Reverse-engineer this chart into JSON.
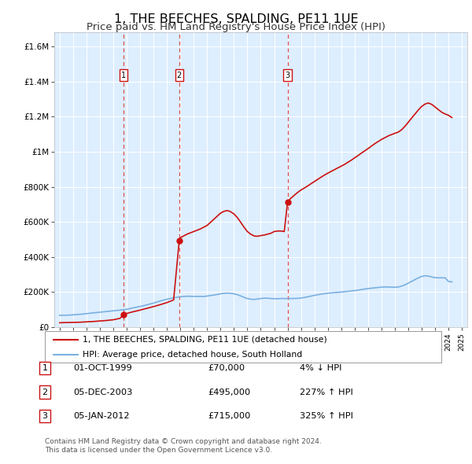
{
  "title": "1, THE BEECHES, SPALDING, PE11 1UE",
  "subtitle": "Price paid vs. HM Land Registry's House Price Index (HPI)",
  "title_fontsize": 11.5,
  "subtitle_fontsize": 9.5,
  "background_color": "#ffffff",
  "plot_bg_color": "#ddeeff",
  "grid_color": "#ffffff",
  "xmin": 1994.6,
  "xmax": 2025.4,
  "ymin": 0,
  "ymax": 1680000,
  "yticks": [
    0,
    200000,
    400000,
    600000,
    800000,
    1000000,
    1200000,
    1400000,
    1600000
  ],
  "ytick_labels": [
    "£0",
    "£200K",
    "£400K",
    "£600K",
    "£800K",
    "£1M",
    "£1.2M",
    "£1.4M",
    "£1.6M"
  ],
  "xtick_years": [
    1995,
    1996,
    1997,
    1998,
    1999,
    2000,
    2001,
    2002,
    2003,
    2004,
    2005,
    2006,
    2007,
    2008,
    2009,
    2010,
    2011,
    2012,
    2013,
    2014,
    2015,
    2016,
    2017,
    2018,
    2019,
    2020,
    2021,
    2022,
    2023,
    2024,
    2025
  ],
  "hpi_line_color": "#7ab0e0",
  "price_line_color": "#cc1111",
  "sale_marker_color": "#cc1111",
  "dashed_line_color": "#dd3333",
  "transactions": [
    {
      "label": "1",
      "year": 1999.75,
      "price": 70000
    },
    {
      "label": "2",
      "year": 2003.92,
      "price": 495000
    },
    {
      "label": "3",
      "year": 2012.0,
      "price": 715000
    }
  ],
  "transaction_info": [
    {
      "num": "1",
      "date": "01-OCT-1999",
      "price": "£70,000",
      "pct": "4% ↓ HPI"
    },
    {
      "num": "2",
      "date": "05-DEC-2003",
      "price": "£495,000",
      "pct": "227% ↑ HPI"
    },
    {
      "num": "3",
      "date": "05-JAN-2012",
      "price": "£715,000",
      "pct": "325% ↑ HPI"
    }
  ],
  "legend_line1": "1, THE BEECHES, SPALDING, PE11 1UE (detached house)",
  "legend_line2": "HPI: Average price, detached house, South Holland",
  "footer1": "Contains HM Land Registry data © Crown copyright and database right 2024.",
  "footer2": "This data is licensed under the Open Government Licence v3.0.",
  "hpi_data_x": [
    1995.0,
    1995.25,
    1995.5,
    1995.75,
    1996.0,
    1996.25,
    1996.5,
    1996.75,
    1997.0,
    1997.25,
    1997.5,
    1997.75,
    1998.0,
    1998.25,
    1998.5,
    1998.75,
    1999.0,
    1999.25,
    1999.5,
    1999.75,
    2000.0,
    2000.25,
    2000.5,
    2000.75,
    2001.0,
    2001.25,
    2001.5,
    2001.75,
    2002.0,
    2002.25,
    2002.5,
    2002.75,
    2003.0,
    2003.25,
    2003.5,
    2003.75,
    2004.0,
    2004.25,
    2004.5,
    2004.75,
    2005.0,
    2005.25,
    2005.5,
    2005.75,
    2006.0,
    2006.25,
    2006.5,
    2006.75,
    2007.0,
    2007.25,
    2007.5,
    2007.75,
    2008.0,
    2008.25,
    2008.5,
    2008.75,
    2009.0,
    2009.25,
    2009.5,
    2009.75,
    2010.0,
    2010.25,
    2010.5,
    2010.75,
    2011.0,
    2011.25,
    2011.5,
    2011.75,
    2012.0,
    2012.25,
    2012.5,
    2012.75,
    2013.0,
    2013.25,
    2013.5,
    2013.75,
    2014.0,
    2014.25,
    2014.5,
    2014.75,
    2015.0,
    2015.25,
    2015.5,
    2015.75,
    2016.0,
    2016.25,
    2016.5,
    2016.75,
    2017.0,
    2017.25,
    2017.5,
    2017.75,
    2018.0,
    2018.25,
    2018.5,
    2018.75,
    2019.0,
    2019.25,
    2019.5,
    2019.75,
    2020.0,
    2020.25,
    2020.5,
    2020.75,
    2021.0,
    2021.25,
    2021.5,
    2021.75,
    2022.0,
    2022.25,
    2022.5,
    2022.75,
    2023.0,
    2023.25,
    2023.5,
    2023.75,
    2024.0,
    2024.25
  ],
  "hpi_data_y": [
    67000,
    67500,
    68000,
    68500,
    70000,
    71500,
    73000,
    74500,
    77000,
    79000,
    81000,
    83000,
    85000,
    87000,
    89000,
    91000,
    93000,
    95000,
    97000,
    99000,
    102000,
    106000,
    110000,
    114000,
    118000,
    122000,
    127000,
    132000,
    137000,
    143000,
    149000,
    154000,
    159000,
    163000,
    167000,
    170000,
    173000,
    175000,
    176000,
    176000,
    175000,
    175000,
    175000,
    175000,
    177000,
    180000,
    183000,
    186000,
    190000,
    193000,
    194000,
    193000,
    190000,
    185000,
    178000,
    170000,
    163000,
    159000,
    158000,
    160000,
    163000,
    165000,
    165000,
    163000,
    162000,
    162000,
    163000,
    163000,
    163000,
    163000,
    163000,
    164000,
    166000,
    169000,
    173000,
    177000,
    181000,
    185000,
    188000,
    191000,
    193000,
    195000,
    197000,
    198000,
    200000,
    202000,
    204000,
    206000,
    208000,
    211000,
    214000,
    217000,
    220000,
    222000,
    224000,
    226000,
    228000,
    229000,
    229000,
    228000,
    227000,
    229000,
    234000,
    241000,
    251000,
    261000,
    271000,
    281000,
    289000,
    293000,
    291000,
    286000,
    282000,
    281000,
    281000,
    281000,
    260000,
    258000
  ],
  "price_data_x": [
    1995.0,
    1995.5,
    1996.0,
    1996.5,
    1997.0,
    1997.5,
    1998.0,
    1998.5,
    1999.0,
    1999.5,
    1999.75,
    2000.0,
    2000.5,
    2001.0,
    2001.5,
    2002.0,
    2002.5,
    2003.0,
    2003.5,
    2003.92,
    2004.0,
    2004.5,
    2005.0,
    2005.5,
    2006.0,
    2006.5,
    2007.0,
    2007.25,
    2007.5,
    2007.75,
    2008.0,
    2008.25,
    2008.5,
    2008.75,
    2009.0,
    2009.25,
    2009.5,
    2009.75,
    2010.0,
    2010.25,
    2010.5,
    2010.75,
    2011.0,
    2011.25,
    2011.5,
    2011.75,
    2012.0,
    2012.25,
    2012.5,
    2012.75,
    2013.0,
    2013.25,
    2013.5,
    2013.75,
    2014.0,
    2014.25,
    2014.5,
    2014.75,
    2015.0,
    2015.25,
    2015.5,
    2015.75,
    2016.0,
    2016.25,
    2016.5,
    2016.75,
    2017.0,
    2017.25,
    2017.5,
    2017.75,
    2018.0,
    2018.25,
    2018.5,
    2018.75,
    2019.0,
    2019.25,
    2019.5,
    2019.75,
    2020.0,
    2020.25,
    2020.5,
    2020.75,
    2021.0,
    2021.25,
    2021.5,
    2021.75,
    2022.0,
    2022.25,
    2022.5,
    2022.75,
    2023.0,
    2023.25,
    2023.5,
    2023.75,
    2024.0,
    2024.25
  ],
  "price_data_y": [
    25000,
    26000,
    27000,
    28000,
    30000,
    32000,
    35000,
    38000,
    42000,
    50000,
    70000,
    78000,
    88000,
    97000,
    107000,
    117000,
    128000,
    140000,
    155000,
    495000,
    510000,
    530000,
    545000,
    560000,
    580000,
    615000,
    650000,
    660000,
    665000,
    658000,
    645000,
    625000,
    598000,
    570000,
    545000,
    530000,
    520000,
    518000,
    522000,
    525000,
    530000,
    535000,
    545000,
    548000,
    548000,
    545000,
    715000,
    735000,
    752000,
    768000,
    782000,
    793000,
    805000,
    818000,
    830000,
    843000,
    855000,
    867000,
    878000,
    888000,
    898000,
    908000,
    918000,
    928000,
    940000,
    952000,
    965000,
    978000,
    992000,
    1005000,
    1018000,
    1032000,
    1046000,
    1058000,
    1070000,
    1080000,
    1090000,
    1098000,
    1105000,
    1112000,
    1125000,
    1145000,
    1168000,
    1192000,
    1215000,
    1238000,
    1258000,
    1272000,
    1278000,
    1270000,
    1255000,
    1240000,
    1225000,
    1215000,
    1208000,
    1195000
  ]
}
